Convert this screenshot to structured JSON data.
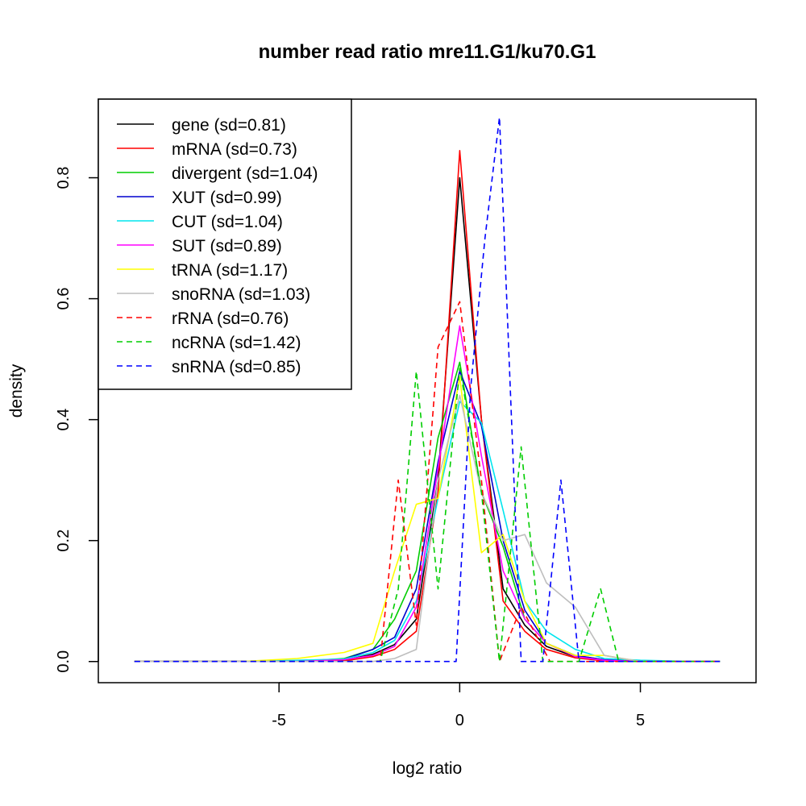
{
  "chart_data": {
    "type": "line",
    "title": "number read ratio mre11.G1/ku70.G1",
    "xlabel": "log2 ratio",
    "ylabel": "density",
    "xlim": [
      -10,
      8.2
    ],
    "ylim": [
      -0.035,
      0.93
    ],
    "xticks": [
      -5,
      0,
      5
    ],
    "xtick_labels": [
      "-5",
      "0",
      "5"
    ],
    "yticks": [
      0.0,
      0.2,
      0.4,
      0.6,
      0.8
    ],
    "ytick_labels": [
      "0.0",
      "0.2",
      "0.4",
      "0.6",
      "0.8"
    ],
    "legend_position": "top-left",
    "series": [
      {
        "name": "gene (sd=0.81)",
        "color": "#000000",
        "dash": "solid",
        "x": [
          -9,
          -6,
          -4.5,
          -3.2,
          -2.4,
          -1.8,
          -1.2,
          -0.6,
          0,
          0.6,
          1.2,
          1.8,
          2.4,
          3.2,
          4,
          5,
          6.5,
          7.2
        ],
        "y": [
          0,
          0,
          0,
          0.002,
          0.012,
          0.028,
          0.07,
          0.3,
          0.8,
          0.4,
          0.12,
          0.06,
          0.025,
          0.008,
          0.002,
          0,
          0,
          0
        ]
      },
      {
        "name": "mRNA (sd=0.73)",
        "color": "#ff0000",
        "dash": "solid",
        "x": [
          -9,
          -6,
          -4.5,
          -3.2,
          -2.4,
          -1.8,
          -1.2,
          -0.6,
          0,
          0.6,
          1.2,
          1.8,
          2.4,
          3.2,
          4,
          5,
          6.5,
          7.2
        ],
        "y": [
          0,
          0,
          0,
          0.001,
          0.008,
          0.02,
          0.05,
          0.28,
          0.845,
          0.4,
          0.1,
          0.05,
          0.02,
          0.006,
          0.001,
          0,
          0,
          0
        ]
      },
      {
        "name": "divergent (sd=1.04)",
        "color": "#00cd00",
        "dash": "solid",
        "x": [
          -9,
          -6,
          -4.5,
          -3.2,
          -2.4,
          -1.8,
          -1.2,
          -0.6,
          0,
          0.6,
          1.2,
          1.8,
          2.4,
          3.2,
          4,
          5,
          6.5,
          7.2
        ],
        "y": [
          0,
          0,
          0,
          0.005,
          0.02,
          0.07,
          0.15,
          0.37,
          0.495,
          0.28,
          0.19,
          0.07,
          0.03,
          0.01,
          0.003,
          0.001,
          0,
          0
        ]
      },
      {
        "name": "XUT (sd=0.99)",
        "color": "#0000cd",
        "dash": "solid",
        "x": [
          -9,
          -6,
          -4.5,
          -3.2,
          -2.4,
          -1.8,
          -1.2,
          -0.6,
          0,
          0.6,
          1.2,
          1.8,
          2.4,
          3.2,
          4,
          5,
          6.5,
          7.2
        ],
        "y": [
          0,
          0,
          0,
          0.004,
          0.02,
          0.04,
          0.12,
          0.33,
          0.48,
          0.39,
          0.2,
          0.085,
          0.03,
          0.01,
          0.003,
          0.001,
          0,
          0
        ]
      },
      {
        "name": "CUT (sd=1.04)",
        "color": "#00e5ee",
        "dash": "solid",
        "x": [
          -9,
          -6,
          -4.5,
          -3.2,
          -2.4,
          -1.8,
          -1.2,
          -0.6,
          0,
          0.6,
          1.2,
          1.8,
          2.4,
          3.2,
          4,
          5,
          6.5,
          7.2
        ],
        "y": [
          0,
          0,
          0.002,
          0.004,
          0.015,
          0.035,
          0.1,
          0.27,
          0.43,
          0.395,
          0.25,
          0.1,
          0.05,
          0.02,
          0.005,
          0.002,
          0,
          0
        ]
      },
      {
        "name": "SUT (sd=0.89)",
        "color": "#ff00ff",
        "dash": "solid",
        "x": [
          -9,
          -6,
          -4.5,
          -3.2,
          -2.4,
          -1.8,
          -1.2,
          -0.6,
          0,
          0.6,
          1.2,
          1.8,
          2.4,
          3.2,
          4,
          5,
          6.5,
          7.2
        ],
        "y": [
          0,
          0,
          0,
          0.003,
          0.01,
          0.025,
          0.09,
          0.32,
          0.555,
          0.34,
          0.15,
          0.07,
          0.03,
          0.008,
          0.002,
          0,
          0,
          0
        ]
      },
      {
        "name": "tRNA (sd=1.17)",
        "color": "#ffff00",
        "dash": "solid",
        "x": [
          -9,
          -6,
          -4.5,
          -3.2,
          -2.4,
          -1.8,
          -1.2,
          -0.6,
          0,
          0.6,
          1.2,
          1.8,
          2.4,
          3.2,
          4,
          5,
          6.5,
          7.2
        ],
        "y": [
          0,
          0,
          0.005,
          0.015,
          0.03,
          0.15,
          0.26,
          0.27,
          0.47,
          0.18,
          0.21,
          0.1,
          0.03,
          0.01,
          0.01,
          0,
          0,
          0
        ]
      },
      {
        "name": "snoRNA (sd=1.03)",
        "color": "#bebebe",
        "dash": "solid",
        "x": [
          -9,
          -6,
          -4.5,
          -3.2,
          -2.4,
          -1.8,
          -1.2,
          -0.6,
          0,
          0.6,
          1.2,
          1.8,
          2.4,
          3.2,
          4,
          5,
          6.5,
          7.2
        ],
        "y": [
          0,
          0,
          0,
          0,
          0,
          0.005,
          0.02,
          0.3,
          0.44,
          0.28,
          0.2,
          0.21,
          0.13,
          0.09,
          0.01,
          0,
          0,
          0
        ]
      },
      {
        "name": "rRNA (sd=0.76)",
        "color": "#ff0000",
        "dash": "dashed",
        "x": [
          -9,
          -5,
          -2.2,
          -1.7,
          -1.2,
          -0.6,
          0,
          0.6,
          1.1,
          1.7,
          2.5,
          4,
          7.2
        ],
        "y": [
          0,
          0,
          0,
          0.3,
          0.06,
          0.52,
          0.595,
          0.3,
          0,
          0.09,
          0,
          0,
          0
        ]
      },
      {
        "name": "ncRNA (sd=1.42)",
        "color": "#00cd00",
        "dash": "dashed",
        "x": [
          -9,
          -5,
          -2.2,
          -1.7,
          -1.2,
          -0.6,
          0,
          0.6,
          1.1,
          1.7,
          2.3,
          2.9,
          3.3,
          3.9,
          4.4,
          7.2
        ],
        "y": [
          0,
          0,
          0,
          0.12,
          0.48,
          0.12,
          0.485,
          0.28,
          0,
          0.355,
          0,
          0,
          0,
          0.12,
          0,
          0
        ]
      },
      {
        "name": "snRNA (sd=0.85)",
        "color": "#0000ff",
        "dash": "dashed",
        "x": [
          -9,
          -5,
          -2,
          -0.1,
          0.3,
          0.7,
          1.1,
          1.7,
          2.3,
          2.8,
          3.3,
          5,
          7.2
        ],
        "y": [
          0,
          0,
          0,
          0,
          0.45,
          0.7,
          0.9,
          0,
          0,
          0.3,
          0,
          0,
          0
        ]
      }
    ]
  }
}
